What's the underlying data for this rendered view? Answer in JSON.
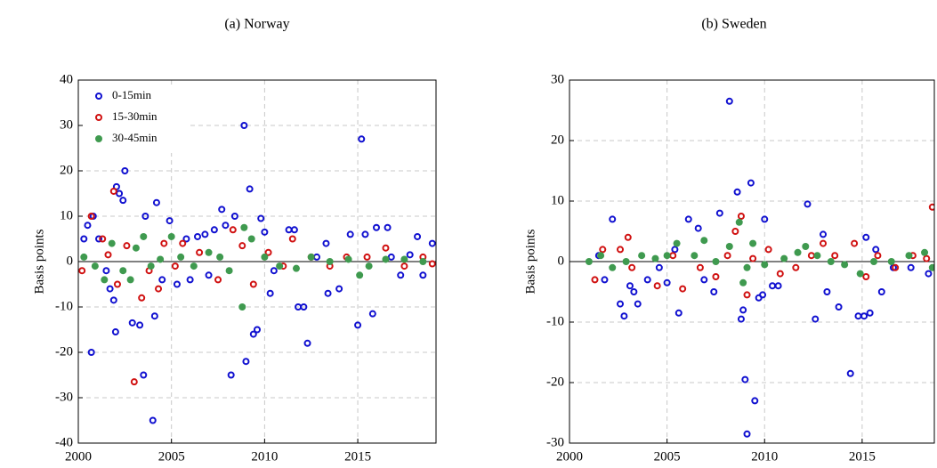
{
  "chart_data": [
    {
      "type": "scatter",
      "title": "(a) Norway",
      "ylabel": "Basis points",
      "xlim": [
        2000,
        2019.2
      ],
      "ylim": [
        -40,
        40
      ],
      "xticks": [
        2000,
        2005,
        2010,
        2015
      ],
      "yticks": [
        -40,
        -30,
        -20,
        -10,
        0,
        10,
        20,
        30,
        40
      ],
      "grid": true,
      "legend": "upper left",
      "series": [
        {
          "name": "0-15min",
          "color": "#1010d0",
          "marker": "open",
          "x": [
            2000.3,
            2000.5,
            2000.7,
            2000.8,
            2001.1,
            2001.5,
            2001.7,
            2001.9,
            2002.0,
            2002.05,
            2002.2,
            2002.4,
            2002.5,
            2002.9,
            2003.3,
            2003.5,
            2003.6,
            2004.0,
            2004.1,
            2004.2,
            2004.5,
            2004.9,
            2005.3,
            2005.8,
            2006.0,
            2006.4,
            2006.8,
            2007.0,
            2007.3,
            2007.7,
            2007.9,
            2008.2,
            2008.4,
            2008.9,
            2009.0,
            2009.2,
            2009.4,
            2009.6,
            2009.8,
            2010.0,
            2010.3,
            2010.5,
            2011.3,
            2011.6,
            2011.8,
            2012.1,
            2012.3,
            2012.8,
            2013.3,
            2013.4,
            2014.0,
            2014.6,
            2015.0,
            2015.2,
            2015.4,
            2015.8,
            2016.0,
            2016.6,
            2016.8,
            2017.3,
            2017.8,
            2018.2,
            2018.5,
            2019.0
          ],
          "values": [
            5,
            8,
            -20,
            10,
            5,
            -2,
            -6,
            -8.5,
            -15.5,
            16.5,
            15,
            13.5,
            20,
            -13.5,
            -14,
            -25,
            10,
            -35,
            -12,
            13,
            -4,
            9,
            -5,
            5,
            -4,
            5.5,
            6,
            -3,
            7,
            11.5,
            8,
            -25,
            10,
            30,
            -22,
            16,
            -16,
            -15,
            9.5,
            6.5,
            -7,
            -2,
            7,
            7,
            -10,
            -10,
            -18,
            1,
            4,
            -7,
            -6,
            6,
            -14,
            27,
            6,
            -11.5,
            7.5,
            7.5,
            1,
            -3,
            1.5,
            5.5,
            -3,
            4
          ]
        },
        {
          "name": "15-30min",
          "color": "#d01010",
          "marker": "open",
          "x": [
            2000.2,
            2000.7,
            2001.3,
            2001.6,
            2001.9,
            2002.1,
            2002.6,
            2003.0,
            2003.4,
            2003.8,
            2004.3,
            2004.6,
            2005.2,
            2005.6,
            2006.5,
            2007.5,
            2008.3,
            2008.8,
            2009.4,
            2010.2,
            2011.0,
            2011.5,
            2012.5,
            2013.5,
            2014.4,
            2015.5,
            2016.5,
            2017.5,
            2018.5,
            2019.0
          ],
          "values": [
            -2,
            10,
            5,
            1.5,
            15.5,
            -5,
            3.5,
            -26.5,
            -8,
            -2,
            -6,
            4,
            -1,
            4,
            2,
            -4,
            7,
            3.5,
            -5,
            2,
            -1,
            5,
            1,
            -1,
            1,
            1,
            3,
            -1,
            1,
            -0.5
          ]
        },
        {
          "name": "30-45min",
          "color": "#3f9a4f",
          "marker": "filled",
          "x": [
            2000.3,
            2000.9,
            2001.4,
            2001.8,
            2002.4,
            2002.8,
            2003.1,
            2003.5,
            2003.9,
            2004.4,
            2005.0,
            2005.5,
            2006.2,
            2007.0,
            2007.6,
            2008.1,
            2008.8,
            2008.9,
            2009.3,
            2010.0,
            2010.8,
            2011.7,
            2012.5,
            2013.5,
            2014.5,
            2015.1,
            2015.6,
            2016.5,
            2017.5,
            2018.5
          ],
          "values": [
            1,
            -1,
            -4,
            4,
            -2,
            -4,
            3,
            5.5,
            -1,
            0.5,
            5.5,
            1,
            -1,
            2,
            1,
            -2,
            -10,
            7.5,
            5,
            1,
            -1,
            -1.5,
            1,
            0,
            0.5,
            -3,
            -1,
            0.5,
            0.5,
            0
          ]
        }
      ]
    },
    {
      "type": "scatter",
      "title": "(b) Sweden",
      "ylabel": "Basis points",
      "xlim": [
        2000,
        2018.7
      ],
      "ylim": [
        -30,
        30
      ],
      "xticks": [
        2000,
        2005,
        2010,
        2015
      ],
      "yticks": [
        -30,
        -20,
        -10,
        0,
        10,
        20,
        30
      ],
      "grid": true,
      "series": [
        {
          "color": "#1010d0",
          "marker": "open",
          "x": [
            2001.5,
            2001.8,
            2002.2,
            2002.6,
            2002.8,
            2003.1,
            2003.3,
            2003.5,
            2004.0,
            2004.6,
            2005.0,
            2005.4,
            2005.6,
            2006.1,
            2006.6,
            2006.9,
            2007.4,
            2007.7,
            2008.2,
            2008.6,
            2008.8,
            2008.9,
            2009.0,
            2009.1,
            2009.3,
            2009.5,
            2009.7,
            2009.9,
            2010.0,
            2010.4,
            2010.7,
            2012.2,
            2012.6,
            2013.0,
            2013.2,
            2013.8,
            2014.4,
            2014.8,
            2015.1,
            2015.2,
            2015.4,
            2015.7,
            2016.0,
            2016.6,
            2017.5,
            2018.4
          ],
          "values": [
            1,
            -3,
            7,
            -7,
            -9,
            -4,
            -5,
            -7,
            -3,
            -1,
            -3.5,
            2,
            -8.5,
            7,
            5.5,
            -3,
            -5,
            8,
            26.5,
            11.5,
            -9.5,
            -8,
            -19.5,
            -28.5,
            13,
            -23,
            -6,
            -5.5,
            7,
            -4,
            -4,
            9.5,
            -9.5,
            4.5,
            -5,
            -7.5,
            -18.5,
            -9,
            -9,
            4,
            -8.5,
            2,
            -5,
            -1,
            -1,
            -2
          ]
        },
        {
          "color": "#d01010",
          "marker": "open",
          "x": [
            2001.3,
            2001.7,
            2002.6,
            2003.0,
            2003.2,
            2004.5,
            2005.3,
            2005.8,
            2006.7,
            2007.5,
            2008.1,
            2008.5,
            2008.8,
            2009.1,
            2009.4,
            2010.2,
            2010.8,
            2011.6,
            2012.4,
            2013.0,
            2013.6,
            2014.6,
            2015.2,
            2015.8,
            2016.7,
            2017.6,
            2018.3,
            2018.6
          ],
          "values": [
            -3,
            2,
            2,
            4,
            -1,
            -4,
            1,
            -4.5,
            -1,
            -2.5,
            1,
            5,
            7.5,
            -5.5,
            0.5,
            2,
            -2,
            -1,
            1,
            3,
            1,
            3,
            -2.5,
            1,
            -1,
            1,
            0.5,
            9
          ]
        },
        {
          "color": "#3f9a4f",
          "marker": "filled",
          "x": [
            2001.0,
            2001.6,
            2002.2,
            2002.9,
            2003.7,
            2004.4,
            2005.0,
            2005.5,
            2006.4,
            2006.9,
            2007.5,
            2008.2,
            2008.7,
            2008.9,
            2009.1,
            2009.4,
            2010.0,
            2011.0,
            2011.7,
            2012.1,
            2012.7,
            2013.4,
            2014.1,
            2014.9,
            2015.6,
            2016.5,
            2017.4,
            2018.2,
            2018.6
          ],
          "values": [
            0,
            1,
            -1,
            0,
            1,
            0.5,
            1,
            3,
            1,
            3.5,
            0,
            2.5,
            6.5,
            -3.5,
            -1,
            3,
            -0.5,
            0.5,
            1.5,
            2.5,
            1,
            0,
            -0.5,
            -2,
            0,
            0,
            1,
            1.5,
            -1
          ]
        }
      ]
    }
  ]
}
